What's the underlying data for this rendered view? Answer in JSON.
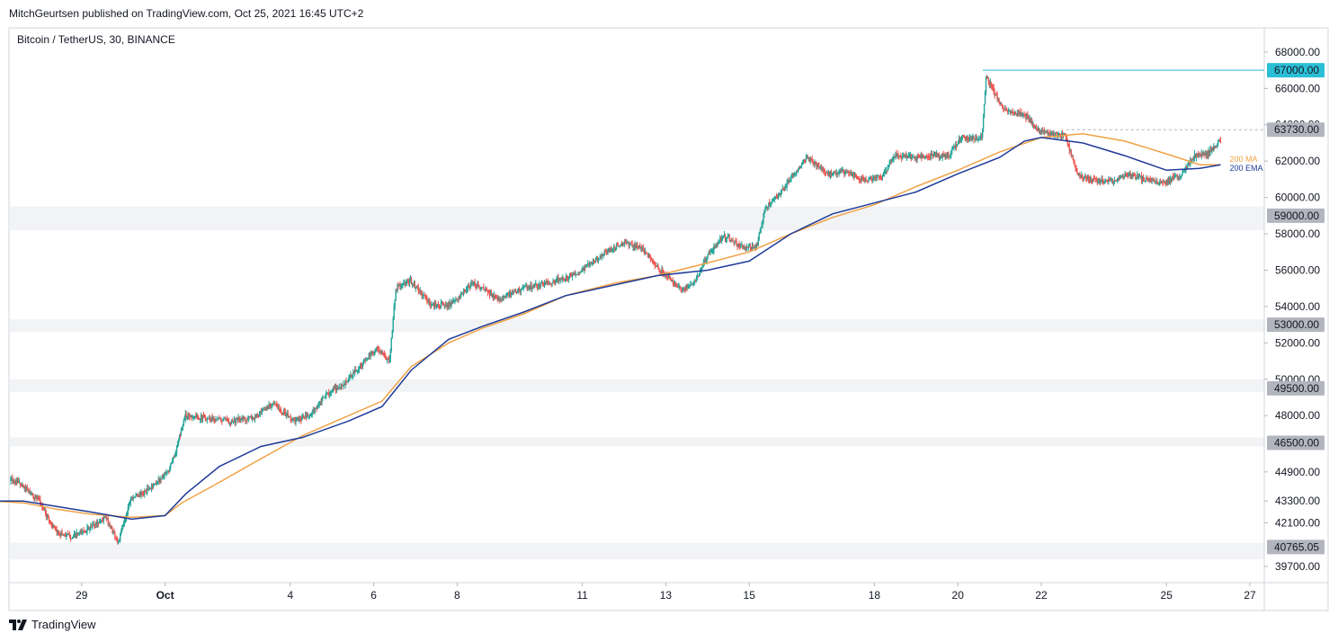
{
  "header": {
    "attribution": "MitchGeurtsen published on TradingView.com, Oct 25, 2021 16:45 UTC+2"
  },
  "footer": {
    "brand": "TradingView",
    "logo_icon": "tradingview-logo-icon"
  },
  "colors": {
    "up": "#26a69a",
    "down": "#ef5350",
    "ma": "#f0a246",
    "ema": "#1f3b99",
    "zone": "#f2f3f5",
    "resistance_line": "#2bb8cf",
    "axis_label_bg": "#b2b5be",
    "cyan_label_bg": "#2bbfd6"
  },
  "chart_data": {
    "type": "candlestick",
    "title": "Bitcoin / TetherUS, 30, BINANCE",
    "ylim": [
      39300,
      68600
    ],
    "xlim": [
      "Sep 27 12:00",
      "Oct 27 18:00"
    ],
    "price_ticks": [
      "68000.00",
      "66000.00",
      "64000.00",
      "62000.00",
      "60000.00",
      "58000.00",
      "56000.00",
      "54000.00",
      "52000.00",
      "50000.00",
      "48000.00",
      "44900.00",
      "43300.00",
      "42100.00",
      "39700.00"
    ],
    "price_tick_values": [
      68000,
      66000,
      64000,
      62000,
      60000,
      58000,
      56000,
      54000,
      52000,
      50000,
      48000,
      44900,
      43300,
      42100,
      39700
    ],
    "x_ticks": [
      {
        "label": "29",
        "day": 2
      },
      {
        "label": "Oct",
        "day": 4
      },
      {
        "label": "4",
        "day": 7
      },
      {
        "label": "6",
        "day": 9
      },
      {
        "label": "8",
        "day": 11
      },
      {
        "label": "11",
        "day": 14
      },
      {
        "label": "13",
        "day": 16
      },
      {
        "label": "15",
        "day": 18
      },
      {
        "label": "18",
        "day": 21
      },
      {
        "label": "20",
        "day": 23
      },
      {
        "label": "22",
        "day": 25
      },
      {
        "label": "25",
        "day": 28
      },
      {
        "label": "27",
        "day": 30
      }
    ],
    "x_tick_note": "day = days after Sep 27 00:00",
    "zones": [
      {
        "label": "59000.00",
        "value": 59000,
        "from": 58200,
        "to": 59500
      },
      {
        "label": "53000.00",
        "value": 53000,
        "from": 52600,
        "to": 53300
      },
      {
        "label": "49500.00",
        "value": 49500,
        "from": 49300,
        "to": 50000
      },
      {
        "label": "46500.00",
        "value": 46500,
        "from": 46300,
        "to": 46800
      },
      {
        "label": "40765.05",
        "value": 40765,
        "from": 40100,
        "to": 41000
      }
    ],
    "levels": [
      {
        "label": "67000.00",
        "value": 67000,
        "style": "solid",
        "color": "#2bb8cf",
        "from_day": 23.6
      },
      {
        "label": "63730.00",
        "value": 63730,
        "style": "dashed",
        "color": "#b2b5be",
        "from_day": 25.6
      }
    ],
    "legend": [
      {
        "name": "200 MA",
        "color": "#f0a246"
      },
      {
        "name": "200 EMA",
        "color": "#1f3b99"
      }
    ],
    "price_path": [
      [
        -0.2,
        44900
      ],
      [
        0.5,
        44300
      ],
      [
        1.0,
        43300
      ],
      [
        1.4,
        41600
      ],
      [
        1.8,
        41300
      ],
      [
        2.2,
        41800
      ],
      [
        2.6,
        42400
      ],
      [
        2.9,
        41000
      ],
      [
        3.2,
        43500
      ],
      [
        3.5,
        43700
      ],
      [
        3.8,
        44300
      ],
      [
        4.1,
        44900
      ],
      [
        4.3,
        46200
      ],
      [
        4.5,
        48000
      ],
      [
        4.9,
        47900
      ],
      [
        5.6,
        47700
      ],
      [
        6.2,
        47900
      ],
      [
        6.6,
        48700
      ],
      [
        7.1,
        47700
      ],
      [
        7.5,
        48000
      ],
      [
        7.9,
        49200
      ],
      [
        8.3,
        49700
      ],
      [
        8.8,
        51000
      ],
      [
        9.1,
        51700
      ],
      [
        9.4,
        51000
      ],
      [
        9.55,
        55000
      ],
      [
        9.9,
        55400
      ],
      [
        10.4,
        54100
      ],
      [
        10.9,
        54100
      ],
      [
        11.4,
        55300
      ],
      [
        12.0,
        54400
      ],
      [
        12.6,
        55000
      ],
      [
        13.2,
        55300
      ],
      [
        13.8,
        55700
      ],
      [
        14.2,
        56300
      ],
      [
        14.6,
        57000
      ],
      [
        15.0,
        57500
      ],
      [
        15.4,
        57300
      ],
      [
        15.9,
        56000
      ],
      [
        16.1,
        55600
      ],
      [
        16.4,
        54900
      ],
      [
        16.7,
        55300
      ],
      [
        17.0,
        56700
      ],
      [
        17.4,
        57900
      ],
      [
        17.9,
        57200
      ],
      [
        18.2,
        57300
      ],
      [
        18.4,
        59400
      ],
      [
        18.8,
        60300
      ],
      [
        19.1,
        61300
      ],
      [
        19.4,
        62200
      ],
      [
        19.9,
        61300
      ],
      [
        20.4,
        61400
      ],
      [
        20.8,
        60900
      ],
      [
        21.2,
        61100
      ],
      [
        21.5,
        62300
      ],
      [
        22.0,
        62200
      ],
      [
        22.4,
        62300
      ],
      [
        22.8,
        62300
      ],
      [
        23.1,
        63300
      ],
      [
        23.3,
        63200
      ],
      [
        23.6,
        63400
      ],
      [
        23.7,
        66700
      ],
      [
        24.1,
        64800
      ],
      [
        24.6,
        64600
      ],
      [
        24.9,
        63800
      ],
      [
        25.2,
        63500
      ],
      [
        25.6,
        63400
      ],
      [
        25.9,
        61200
      ],
      [
        26.3,
        60900
      ],
      [
        26.8,
        60900
      ],
      [
        27.1,
        61300
      ],
      [
        27.5,
        61000
      ],
      [
        28.0,
        60800
      ],
      [
        28.2,
        61100
      ],
      [
        28.4,
        61300
      ],
      [
        28.7,
        62300
      ],
      [
        29.0,
        62400
      ],
      [
        29.3,
        63100
      ]
    ],
    "ma200_path": [
      [
        -0.2,
        43300
      ],
      [
        0.6,
        43200
      ],
      [
        1.4,
        42850
      ],
      [
        2.2,
        42580
      ],
      [
        3.2,
        42400
      ],
      [
        4.0,
        42500
      ],
      [
        4.4,
        43200
      ],
      [
        5.2,
        44200
      ],
      [
        6.2,
        45500
      ],
      [
        7.3,
        46900
      ],
      [
        8.4,
        48000
      ],
      [
        9.2,
        48800
      ],
      [
        9.9,
        50700
      ],
      [
        10.8,
        52000
      ],
      [
        11.6,
        52800
      ],
      [
        12.6,
        53600
      ],
      [
        13.6,
        54600
      ],
      [
        14.8,
        55300
      ],
      [
        15.8,
        55700
      ],
      [
        17.0,
        56400
      ],
      [
        18.0,
        57000
      ],
      [
        19.0,
        58000
      ],
      [
        20.0,
        58900
      ],
      [
        21.0,
        59600
      ],
      [
        22.0,
        60600
      ],
      [
        23.0,
        61500
      ],
      [
        24.0,
        62500
      ],
      [
        25.0,
        63300
      ],
      [
        26.0,
        63500
      ],
      [
        27.0,
        63100
      ],
      [
        28.0,
        62400
      ],
      [
        28.8,
        61800
      ],
      [
        29.3,
        61800
      ]
    ],
    "ema200_path": [
      [
        -0.2,
        43300
      ],
      [
        0.6,
        43300
      ],
      [
        1.4,
        43000
      ],
      [
        2.2,
        42700
      ],
      [
        3.2,
        42300
      ],
      [
        4.0,
        42500
      ],
      [
        4.5,
        43700
      ],
      [
        5.3,
        45200
      ],
      [
        6.3,
        46300
      ],
      [
        7.3,
        46800
      ],
      [
        8.4,
        47700
      ],
      [
        9.2,
        48500
      ],
      [
        9.9,
        50500
      ],
      [
        10.8,
        52200
      ],
      [
        11.6,
        52900
      ],
      [
        12.6,
        53700
      ],
      [
        13.6,
        54600
      ],
      [
        14.8,
        55200
      ],
      [
        15.8,
        55700
      ],
      [
        17.0,
        56000
      ],
      [
        18.0,
        56500
      ],
      [
        19.0,
        58000
      ],
      [
        20.0,
        59100
      ],
      [
        21.0,
        59700
      ],
      [
        22.0,
        60300
      ],
      [
        23.0,
        61300
      ],
      [
        24.0,
        62200
      ],
      [
        24.6,
        63100
      ],
      [
        25.0,
        63300
      ],
      [
        26.0,
        63000
      ],
      [
        27.0,
        62300
      ],
      [
        28.0,
        61500
      ],
      [
        28.8,
        61600
      ],
      [
        29.3,
        61800
      ]
    ]
  }
}
